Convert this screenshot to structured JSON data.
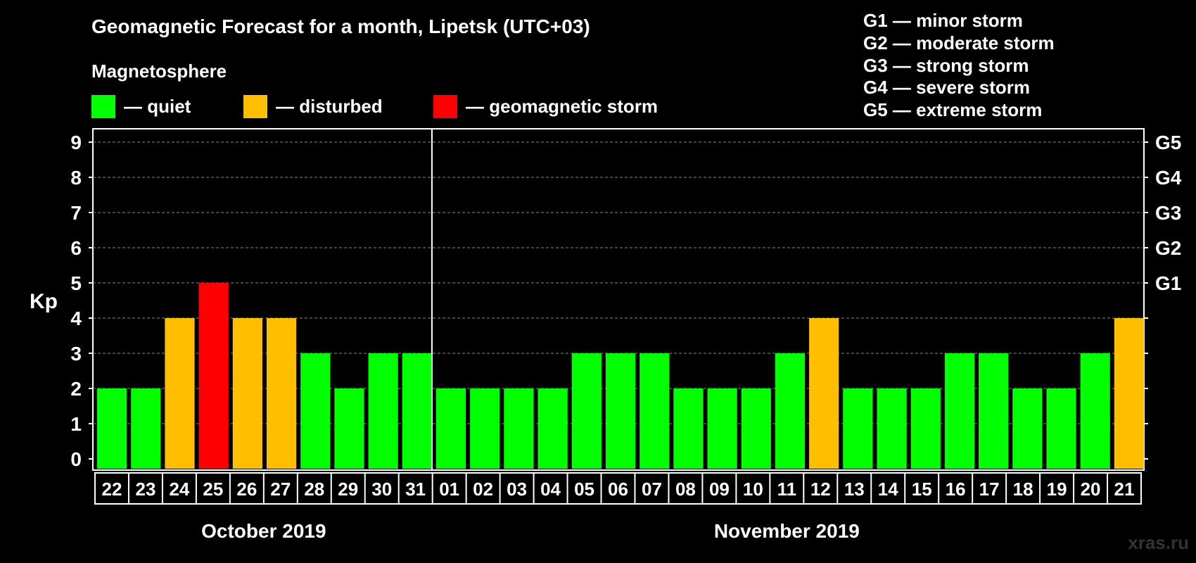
{
  "title": "Geomagnetic Forecast for a month, Lipetsk (UTC+03)",
  "magnetosphere": {
    "label": "Magnetosphere",
    "items": [
      {
        "label": "— quiet",
        "color": "#00ff00"
      },
      {
        "label": "— disturbed",
        "color": "#ffbf00"
      },
      {
        "label": "— geomagnetic storm",
        "color": "#ff0000"
      }
    ]
  },
  "storm_scale": [
    "G1 — minor storm",
    "G2 — moderate storm",
    "G3 — strong storm",
    "G4 — severe storm",
    "G5 — extreme storm"
  ],
  "watermark": "xras.ru",
  "chart_data": {
    "type": "bar",
    "ylabel": "Kp",
    "ylim": [
      0,
      9
    ],
    "yticks": [
      "0",
      "1",
      "2",
      "3",
      "4",
      "5",
      "6",
      "7",
      "8",
      "9"
    ],
    "right_ticks": [
      {
        "kp": 5,
        "label": "G1"
      },
      {
        "kp": 6,
        "label": "G2"
      },
      {
        "kp": 7,
        "label": "G3"
      },
      {
        "kp": 8,
        "label": "G4"
      },
      {
        "kp": 9,
        "label": "G5"
      }
    ],
    "grid": true,
    "categories": [
      "22",
      "23",
      "24",
      "25",
      "26",
      "27",
      "28",
      "29",
      "30",
      "31",
      "01",
      "02",
      "03",
      "04",
      "05",
      "06",
      "07",
      "08",
      "09",
      "10",
      "11",
      "12",
      "13",
      "14",
      "15",
      "16",
      "17",
      "18",
      "19",
      "20",
      "21"
    ],
    "values": [
      2,
      2,
      4,
      5,
      4,
      4,
      3,
      2,
      3,
      3,
      2,
      2,
      2,
      2,
      3,
      3,
      3,
      2,
      2,
      2,
      3,
      4,
      2,
      2,
      2,
      3,
      3,
      2,
      2,
      3,
      4
    ],
    "months": [
      {
        "label": "October 2019",
        "count": 10
      },
      {
        "label": "November 2019",
        "count": 21
      }
    ],
    "colors": {
      "quiet": "#00ff00",
      "disturbed": "#ffbf00",
      "storm": "#ff0000"
    }
  }
}
